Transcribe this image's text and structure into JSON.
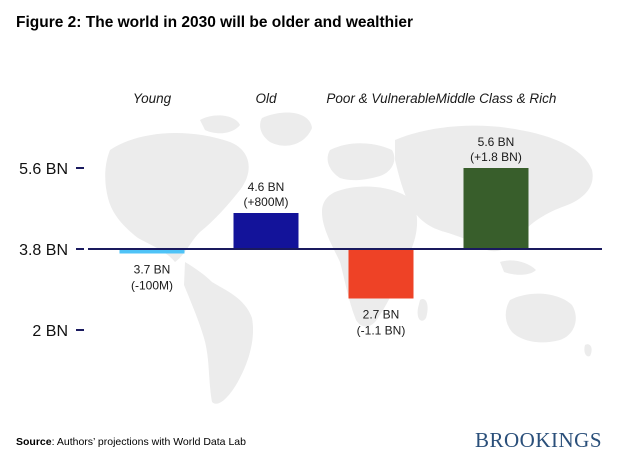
{
  "title": "Figure 2: The world in 2030 will be older and wealthier",
  "source": {
    "label": "Source",
    "text": ": Authors’ projections with World Data Lab"
  },
  "brand": "BROOKINGS",
  "chart_data": {
    "type": "bar",
    "baseline": 3.8,
    "ylim": [
      1.8,
      5.8
    ],
    "yticks": [
      {
        "value": 5.6,
        "label": "5.6 BN"
      },
      {
        "value": 3.8,
        "label": "3.8 BN"
      },
      {
        "value": 2.0,
        "label": "2 BN"
      }
    ],
    "categories": [
      "Young",
      "Old",
      "Poor & Vulnerable",
      "Middle Class & Rich"
    ],
    "values": [
      3.7,
      4.6,
      2.7,
      5.6
    ],
    "value_labels": [
      "3.7 BN",
      "4.6 BN",
      "2.7 BN",
      "5.6 BN"
    ],
    "change_labels": [
      "(-100M)",
      "(+800M)",
      "(-1.1 BN)",
      "(+1.8 BN)"
    ],
    "colors": [
      "#4fc3f7",
      "#13139a",
      "#ee4226",
      "#385e2b"
    ],
    "baseline_color": "#1a1a5e",
    "background": "world-map",
    "grid": false
  }
}
